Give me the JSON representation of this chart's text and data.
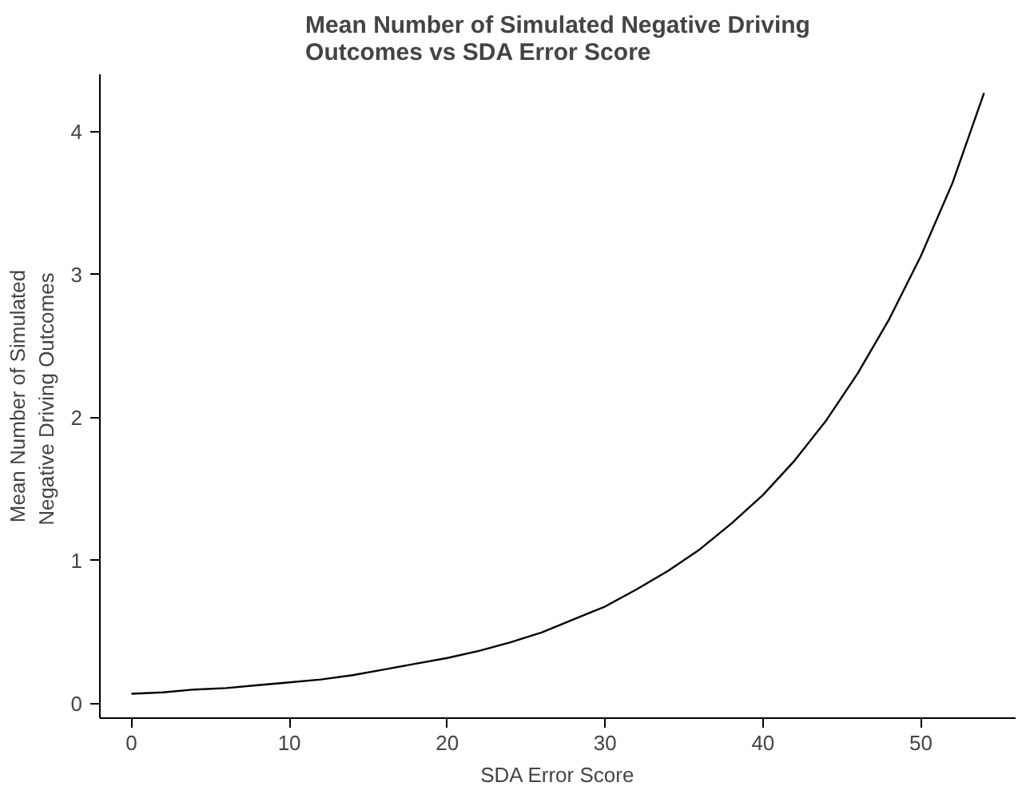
{
  "chart_data": {
    "type": "line",
    "title": "Mean Number of Simulated Negative Driving\nOutcomes vs SDA Error Score",
    "xlabel": "SDA Error Score",
    "ylabel": "Mean Number of Simulated\nNegative  Driving Outcomes",
    "x": [
      0,
      2,
      4,
      6,
      8,
      10,
      12,
      14,
      16,
      18,
      20,
      22,
      24,
      26,
      28,
      30,
      32,
      34,
      36,
      38,
      40,
      42,
      44,
      46,
      48,
      50,
      52,
      54
    ],
    "series": [
      {
        "color": "#000000",
        "values": [
          0.07,
          0.08,
          0.1,
          0.11,
          0.13,
          0.15,
          0.17,
          0.2,
          0.24,
          0.28,
          0.32,
          0.37,
          0.43,
          0.5,
          0.59,
          0.68,
          0.8,
          0.93,
          1.08,
          1.26,
          1.46,
          1.7,
          1.98,
          2.31,
          2.69,
          3.13,
          3.64,
          4.27
        ]
      }
    ],
    "xlim": [
      -2,
      56
    ],
    "ylim": [
      -0.1,
      4.4
    ],
    "xticks": [
      0,
      10,
      20,
      30,
      40,
      50
    ],
    "yticks": [
      0,
      1,
      2,
      3,
      4
    ],
    "grid": false,
    "marker": "none",
    "line_style": "solid"
  }
}
